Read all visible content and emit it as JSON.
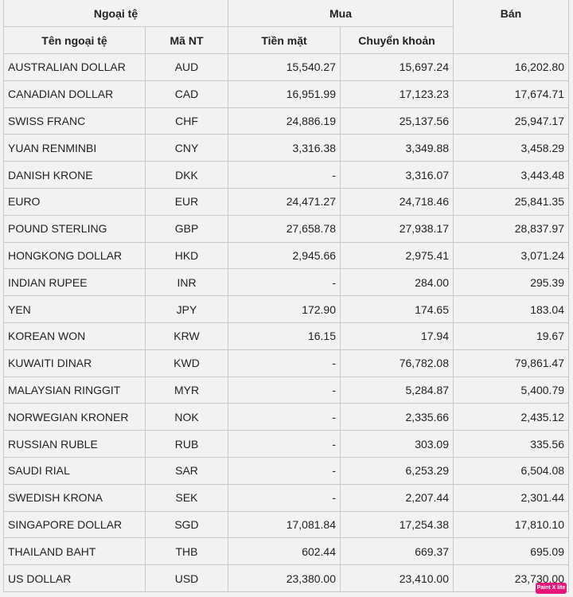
{
  "header": {
    "group_currency": "Ngoại tệ",
    "group_buy": "Mua",
    "sell": "Bán",
    "name": "Tên ngoại tệ",
    "code": "Mã NT",
    "cash": "Tiền mặt",
    "transfer": "Chuyển khoản"
  },
  "rows": [
    {
      "name": "AUSTRALIAN DOLLAR",
      "code": "AUD",
      "cash": "15,540.27",
      "transfer": "15,697.24",
      "sell": "16,202.80"
    },
    {
      "name": "CANADIAN DOLLAR",
      "code": "CAD",
      "cash": "16,951.99",
      "transfer": "17,123.23",
      "sell": "17,674.71"
    },
    {
      "name": "SWISS FRANC",
      "code": "CHF",
      "cash": "24,886.19",
      "transfer": "25,137.56",
      "sell": "25,947.17"
    },
    {
      "name": "YUAN RENMINBI",
      "code": "CNY",
      "cash": "3,316.38",
      "transfer": "3,349.88",
      "sell": "3,458.29"
    },
    {
      "name": "DANISH KRONE",
      "code": "DKK",
      "cash": "-",
      "transfer": "3,316.07",
      "sell": "3,443.48"
    },
    {
      "name": "EURO",
      "code": "EUR",
      "cash": "24,471.27",
      "transfer": "24,718.46",
      "sell": "25,841.35"
    },
    {
      "name": "POUND STERLING",
      "code": "GBP",
      "cash": "27,658.78",
      "transfer": "27,938.17",
      "sell": "28,837.97"
    },
    {
      "name": "HONGKONG DOLLAR",
      "code": "HKD",
      "cash": "2,945.66",
      "transfer": "2,975.41",
      "sell": "3,071.24"
    },
    {
      "name": "INDIAN RUPEE",
      "code": "INR",
      "cash": "-",
      "transfer": "284.00",
      "sell": "295.39"
    },
    {
      "name": "YEN",
      "code": "JPY",
      "cash": "172.90",
      "transfer": "174.65",
      "sell": "183.04"
    },
    {
      "name": "KOREAN WON",
      "code": "KRW",
      "cash": "16.15",
      "transfer": "17.94",
      "sell": "19.67"
    },
    {
      "name": "KUWAITI DINAR",
      "code": "KWD",
      "cash": "-",
      "transfer": "76,782.08",
      "sell": "79,861.47"
    },
    {
      "name": "MALAYSIAN RINGGIT",
      "code": "MYR",
      "cash": "-",
      "transfer": "5,284.87",
      "sell": "5,400.79"
    },
    {
      "name": "NORWEGIAN KRONER",
      "code": "NOK",
      "cash": "-",
      "transfer": "2,335.66",
      "sell": "2,435.12"
    },
    {
      "name": "RUSSIAN RUBLE",
      "code": "RUB",
      "cash": "-",
      "transfer": "303.09",
      "sell": "335.56"
    },
    {
      "name": "SAUDI RIAL",
      "code": "SAR",
      "cash": "-",
      "transfer": "6,253.29",
      "sell": "6,504.08"
    },
    {
      "name": "SWEDISH KRONA",
      "code": "SEK",
      "cash": "-",
      "transfer": "2,207.44",
      "sell": "2,301.44"
    },
    {
      "name": "SINGAPORE DOLLAR",
      "code": "SGD",
      "cash": "17,081.84",
      "transfer": "17,254.38",
      "sell": "17,810.10"
    },
    {
      "name": "THAILAND BAHT",
      "code": "THB",
      "cash": "602.44",
      "transfer": "669.37",
      "sell": "695.09"
    },
    {
      "name": "US DOLLAR",
      "code": "USD",
      "cash": "23,380.00",
      "transfer": "23,410.00",
      "sell": "23,730.00"
    }
  ],
  "badge": {
    "label": "Paint X lite",
    "color": "#e5157a"
  }
}
